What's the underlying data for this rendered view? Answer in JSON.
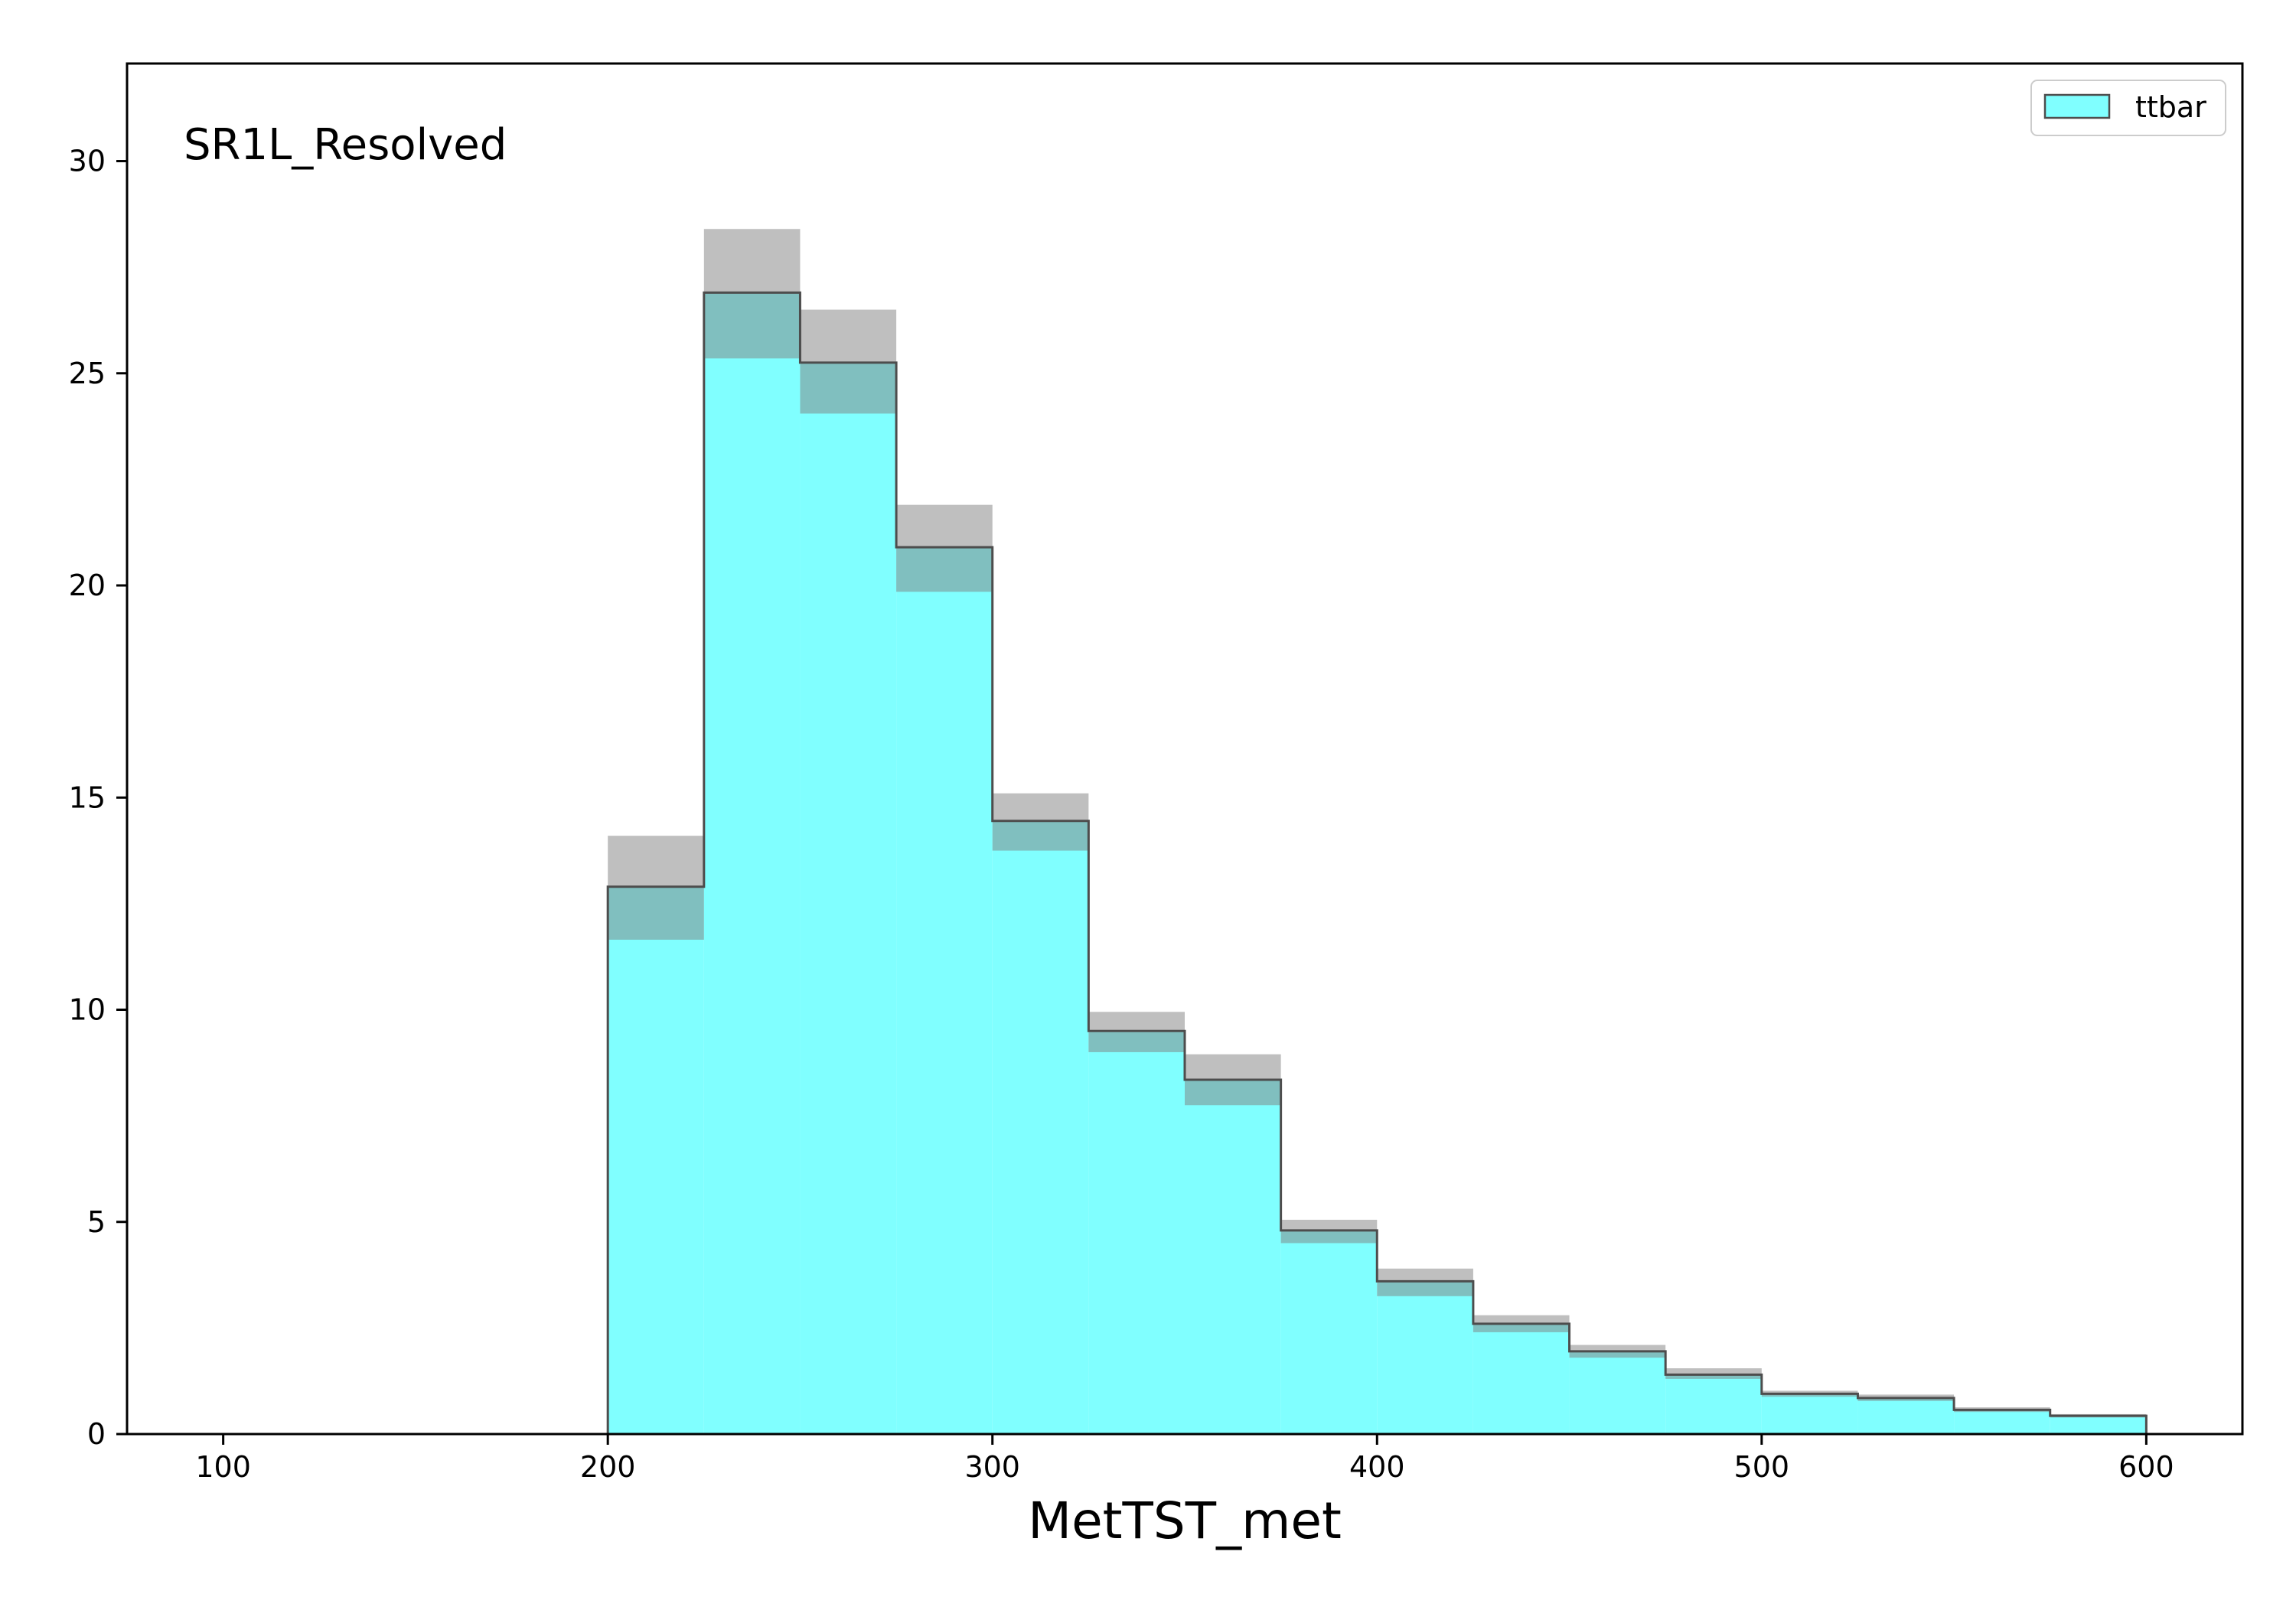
{
  "chart_data": {
    "type": "bar",
    "histtype": "stepfilled",
    "region_label": "SR1L_Resolved",
    "xlabel": "MetTST_met",
    "ylabel": "",
    "xlim": [
      75,
      625
    ],
    "ylim": [
      0,
      32.3
    ],
    "xticks": [
      100,
      200,
      300,
      400,
      500,
      600
    ],
    "yticks": [
      0,
      5,
      10,
      15,
      20,
      25,
      30
    ],
    "bin_edges": [
      200,
      225,
      250,
      275,
      300,
      325,
      350,
      375,
      400,
      425,
      450,
      475,
      500,
      525,
      550,
      575,
      600
    ],
    "series": [
      {
        "name": "ttbar",
        "color": "#80ffff",
        "values": [
          12.9,
          26.9,
          25.25,
          20.9,
          14.45,
          9.5,
          8.35,
          4.8,
          3.6,
          2.6,
          1.95,
          1.4,
          0.95,
          0.85,
          0.57,
          0.43
        ],
        "err_low": [
          11.65,
          25.35,
          24.05,
          19.85,
          13.75,
          9.0,
          7.75,
          4.5,
          3.25,
          2.4,
          1.8,
          1.3,
          0.88,
          0.78,
          0.52,
          0.39
        ],
        "err_high": [
          14.1,
          28.4,
          26.5,
          21.9,
          15.1,
          9.95,
          8.95,
          5.05,
          3.9,
          2.8,
          2.1,
          1.55,
          1.02,
          0.93,
          0.63,
          0.47
        ]
      }
    ],
    "error_band_color": "#808080",
    "legend": {
      "position": "top-right",
      "entries": [
        "ttbar"
      ]
    },
    "grid": false
  }
}
